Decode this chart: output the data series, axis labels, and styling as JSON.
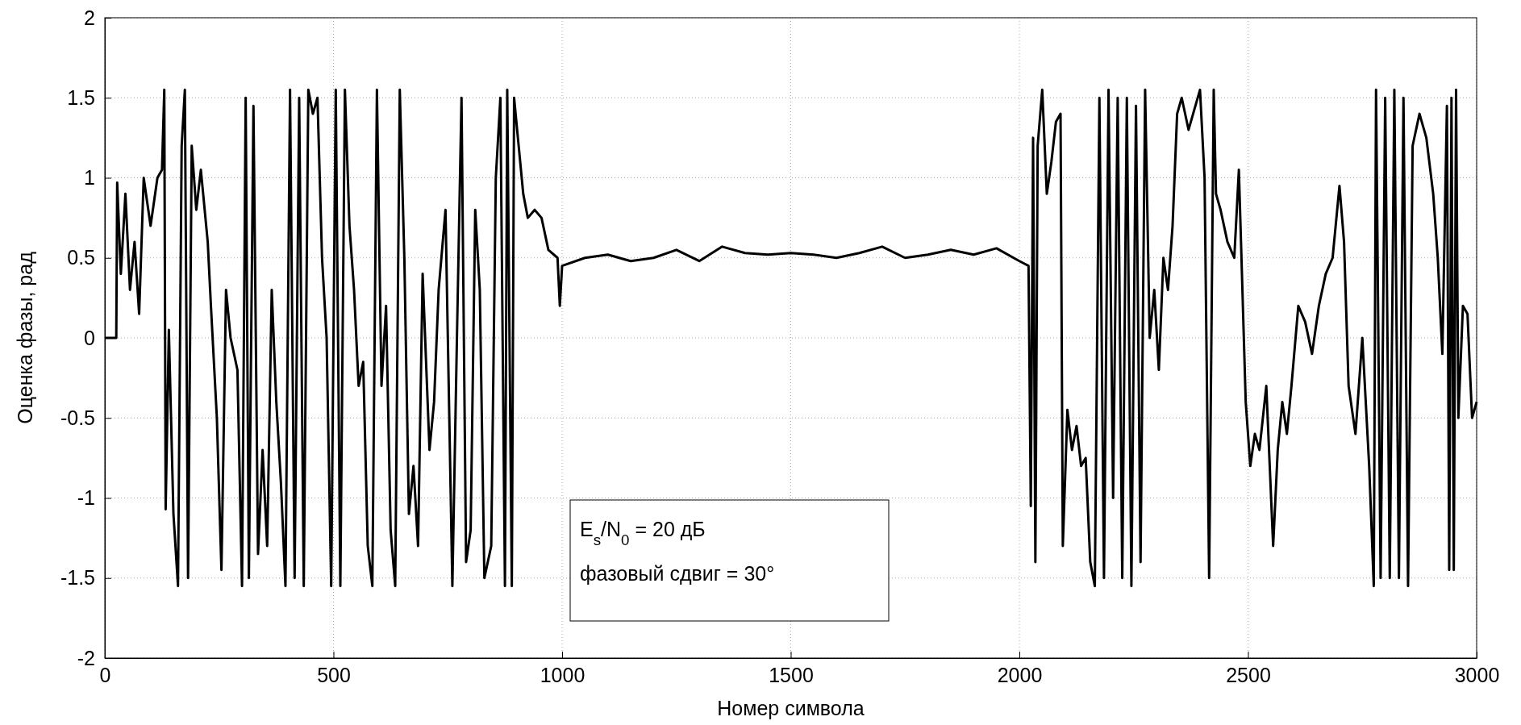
{
  "chart_data": {
    "type": "line",
    "xlabel": "Номер символа",
    "ylabel": "Оценка фазы, рад",
    "xlim": [
      0,
      3000
    ],
    "ylim": [
      -2,
      2
    ],
    "xticks": [
      0,
      500,
      1000,
      1500,
      2000,
      2500,
      3000
    ],
    "yticks": [
      -2,
      -1.5,
      -1,
      -0.5,
      0,
      0.5,
      1,
      1.5,
      2
    ],
    "grid": true,
    "marker": "none",
    "line_style": "solid",
    "annotations": [
      "E$_{s}$/N$_{0}$ = 20 дБ",
      "фазовый сдвиг = 30°"
    ],
    "series": [
      {
        "color": "#000000",
        "x": [
          0,
          25,
          27,
          35,
          45,
          55,
          65,
          75,
          85,
          100,
          115,
          125,
          130,
          133,
          140,
          150,
          160,
          168,
          175,
          182,
          190,
          200,
          210,
          225,
          232,
          245,
          255,
          265,
          275,
          290,
          300,
          308,
          315,
          325,
          335,
          345,
          355,
          365,
          375,
          385,
          395,
          405,
          415,
          425,
          435,
          445,
          455,
          465,
          475,
          485,
          495,
          505,
          515,
          525,
          535,
          545,
          555,
          565,
          575,
          585,
          595,
          605,
          615,
          625,
          635,
          645,
          655,
          665,
          675,
          685,
          695,
          710,
          720,
          730,
          745,
          760,
          770,
          780,
          790,
          800,
          810,
          820,
          830,
          845,
          855,
          865,
          875,
          880,
          890,
          895,
          905,
          915,
          925,
          940,
          955,
          970,
          990,
          995,
          1000,
          1050,
          1100,
          1150,
          1200,
          1250,
          1300,
          1350,
          1400,
          1450,
          1500,
          1550,
          1600,
          1650,
          1700,
          1750,
          1800,
          1850,
          1900,
          1950,
          2000,
          2020,
          2025,
          2030,
          2035,
          2040,
          2050,
          2060,
          2070,
          2080,
          2090,
          2095,
          2105,
          2115,
          2125,
          2135,
          2145,
          2155,
          2165,
          2175,
          2185,
          2195,
          2205,
          2215,
          2225,
          2235,
          2245,
          2255,
          2265,
          2275,
          2285,
          2295,
          2305,
          2315,
          2325,
          2335,
          2345,
          2355,
          2370,
          2385,
          2395,
          2405,
          2415,
          2425,
          2430,
          2440,
          2455,
          2470,
          2480,
          2495,
          2505,
          2515,
          2525,
          2540,
          2555,
          2565,
          2575,
          2585,
          2595,
          2610,
          2625,
          2640,
          2655,
          2670,
          2685,
          2700,
          2710,
          2720,
          2735,
          2750,
          2765,
          2775,
          2780,
          2790,
          2800,
          2810,
          2820,
          2830,
          2840,
          2850,
          2860,
          2875,
          2890,
          2905,
          2915,
          2925,
          2935,
          2940,
          2945,
          2950,
          2955,
          2960,
          2970,
          2980,
          2990,
          3000
        ],
        "values": [
          0,
          0,
          0.97,
          0.4,
          0.9,
          0.3,
          0.6,
          0.15,
          1.0,
          0.7,
          1.0,
          1.05,
          1.55,
          -1.07,
          0.05,
          -1.1,
          -1.55,
          1.2,
          1.55,
          -1.5,
          1.2,
          0.8,
          1.05,
          0.6,
          0.2,
          -0.5,
          -1.45,
          0.3,
          0.0,
          -0.2,
          -1.55,
          1.5,
          -1.5,
          1.45,
          -1.35,
          -0.7,
          -1.3,
          0.3,
          -0.4,
          -0.9,
          -1.55,
          1.55,
          -1.5,
          1.5,
          -1.55,
          1.55,
          1.4,
          1.5,
          0.5,
          0.0,
          -1.55,
          1.55,
          -1.55,
          1.55,
          0.7,
          0.3,
          -0.3,
          -0.15,
          -1.3,
          -1.55,
          1.55,
          -0.3,
          0.2,
          -1.2,
          -1.55,
          1.55,
          0.5,
          -1.1,
          -0.8,
          -1.3,
          0.4,
          -0.7,
          -0.4,
          0.3,
          0.8,
          -1.55,
          0.0,
          1.5,
          -1.4,
          -1.2,
          0.8,
          0.3,
          -1.5,
          -1.3,
          1.0,
          1.5,
          -1.55,
          1.55,
          -1.55,
          1.5,
          1.2,
          0.9,
          0.75,
          0.8,
          0.75,
          0.55,
          0.5,
          0.2,
          0.45,
          0.5,
          0.52,
          0.48,
          0.5,
          0.55,
          0.48,
          0.57,
          0.53,
          0.52,
          0.53,
          0.52,
          0.5,
          0.53,
          0.57,
          0.5,
          0.52,
          0.55,
          0.52,
          0.56,
          0.48,
          0.45,
          -1.05,
          1.25,
          -1.4,
          1.2,
          1.55,
          0.9,
          1.1,
          1.35,
          1.4,
          -1.3,
          -0.45,
          -0.7,
          -0.55,
          -0.8,
          -0.75,
          -1.4,
          -1.55,
          1.5,
          -1.5,
          1.55,
          -1.0,
          1.5,
          -1.5,
          1.5,
          -1.55,
          1.45,
          -1.4,
          1.55,
          0.0,
          0.3,
          -0.2,
          0.5,
          0.3,
          0.7,
          1.4,
          1.5,
          1.3,
          1.45,
          1.55,
          1.0,
          -1.5,
          1.55,
          0.9,
          0.8,
          0.6,
          0.5,
          1.05,
          -0.4,
          -0.8,
          -0.6,
          -0.7,
          -0.3,
          -1.3,
          -0.7,
          -0.4,
          -0.6,
          -0.3,
          0.2,
          0.1,
          -0.1,
          0.2,
          0.4,
          0.5,
          0.95,
          0.6,
          -0.3,
          -0.6,
          0.0,
          -0.8,
          -1.55,
          1.55,
          -1.5,
          1.5,
          -1.5,
          1.55,
          -1.5,
          1.5,
          -1.55,
          1.2,
          1.4,
          1.25,
          0.9,
          0.5,
          -0.1,
          1.45,
          -1.45,
          1.5,
          -1.45,
          1.55,
          -0.5,
          0.2,
          0.15,
          -0.5,
          -0.4
        ]
      }
    ]
  }
}
